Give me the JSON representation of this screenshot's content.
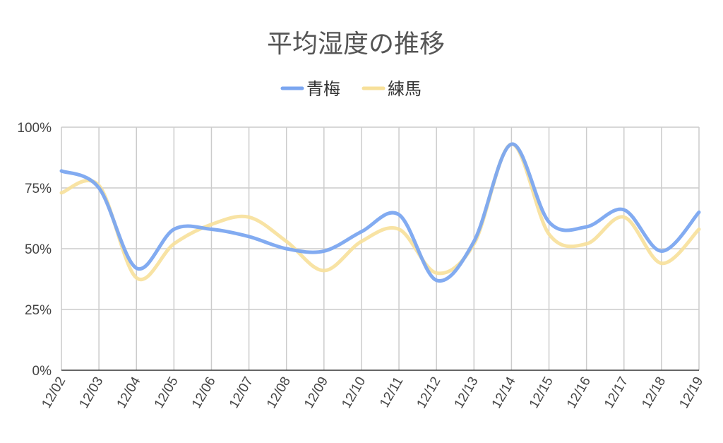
{
  "chart_data": {
    "type": "line",
    "title": "平均湿度の推移",
    "xlabel": "",
    "ylabel": "",
    "categories": [
      "12/02",
      "12/03",
      "12/04",
      "12/05",
      "12/06",
      "12/07",
      "12/08",
      "12/09",
      "12/10",
      "12/11",
      "12/12",
      "12/13",
      "12/14",
      "12/15",
      "12/16",
      "12/17",
      "12/18",
      "12/19"
    ],
    "yticks": [
      "0%",
      "25%",
      "50%",
      "75%",
      "100%"
    ],
    "ylim": [
      0,
      100
    ],
    "grid": true,
    "legend_position": "top-center",
    "series": [
      {
        "name": "青梅",
        "color": "#7ba6f0",
        "values": [
          82,
          75,
          42,
          58,
          58,
          55,
          50,
          49,
          57,
          64,
          37,
          53,
          93,
          61,
          59,
          66,
          49,
          65
        ]
      },
      {
        "name": "練馬",
        "color": "#f7e09a",
        "values": [
          73,
          76,
          38,
          52,
          60,
          63,
          53,
          41,
          53,
          58,
          40,
          52,
          93,
          56,
          52,
          63,
          44,
          58
        ]
      }
    ]
  }
}
